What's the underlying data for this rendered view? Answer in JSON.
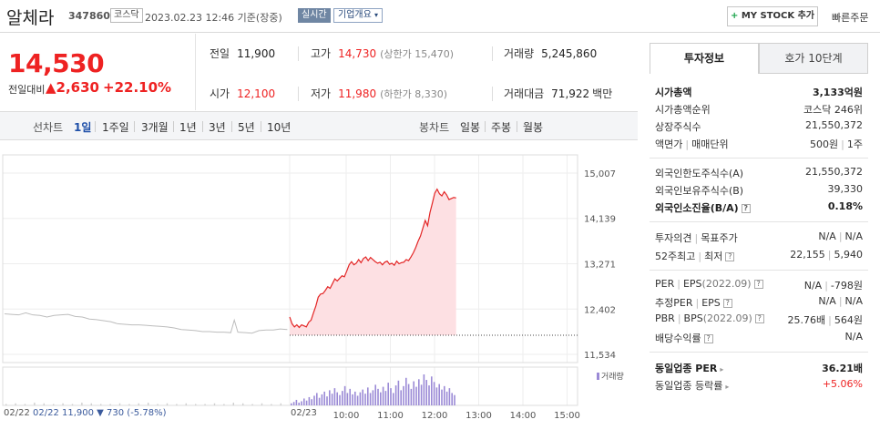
{
  "header": {
    "name": "알체라",
    "code": "347860",
    "market": "코스닥",
    "timestamp": "2023.02.23 12:46 기준(장중)",
    "realtime": "실시간",
    "overview": "기업개요",
    "mystock": "MY STOCK 추가",
    "quick_order": "빠른주문"
  },
  "price": {
    "current": "14,530",
    "label": "전일대비",
    "change": "2,630",
    "percent": "+22.10%"
  },
  "quote": {
    "prev_k": "전일",
    "prev_v": "11,900",
    "high_k": "고가",
    "high_v": "14,730",
    "upper_limit": "(상한가 15,470)",
    "volume_k": "거래량",
    "volume_v": "5,245,860",
    "open_k": "시가",
    "open_v": "12,100",
    "low_k": "저가",
    "low_v": "11,980",
    "lower_limit": "(하한가 8,330)",
    "amount_k": "거래대금",
    "amount_v": "71,922",
    "amount_unit": "백만"
  },
  "period": {
    "line_label": "선차트",
    "items": [
      "1일",
      "1주일",
      "3개월",
      "1년",
      "3년",
      "5년",
      "10년"
    ],
    "selected": "1일",
    "candle_label": "봉차트",
    "candles": [
      "일봉",
      "주봉",
      "월봉"
    ]
  },
  "chart_data": {
    "type": "line",
    "y_ticks": [
      "15,007",
      "14,139",
      "13,271",
      "12,402",
      "11,534"
    ],
    "ylim": [
      11534,
      15007
    ],
    "x_ticks": [
      "10:00",
      "11:00",
      "12:00",
      "13:00",
      "14:00",
      "15:00"
    ],
    "prev_day_label": "02/22",
    "today_label": "02/23",
    "prev_close_info": "02/22  11,900 ▼ 730 (-5.78%)",
    "volume_legend": "거래량",
    "prev_day_series": [
      [
        0,
        12310
      ],
      [
        4,
        12300
      ],
      [
        8,
        12290
      ],
      [
        12,
        12330
      ],
      [
        16,
        12290
      ],
      [
        20,
        12280
      ],
      [
        24,
        12250
      ],
      [
        28,
        12280
      ],
      [
        32,
        12290
      ],
      [
        36,
        12300
      ],
      [
        40,
        12260
      ],
      [
        44,
        12250
      ],
      [
        48,
        12210
      ],
      [
        52,
        12200
      ],
      [
        56,
        12180
      ],
      [
        60,
        12160
      ],
      [
        64,
        12120
      ],
      [
        68,
        12110
      ],
      [
        72,
        12100
      ],
      [
        76,
        12100
      ],
      [
        80,
        12090
      ],
      [
        84,
        12080
      ],
      [
        88,
        12070
      ],
      [
        92,
        12060
      ],
      [
        96,
        12040
      ],
      [
        100,
        12010
      ],
      [
        104,
        12000
      ],
      [
        108,
        11990
      ],
      [
        112,
        11970
      ],
      [
        116,
        11970
      ],
      [
        120,
        11960
      ],
      [
        124,
        11960
      ],
      [
        128,
        11950
      ],
      [
        130,
        12190
      ],
      [
        132,
        11960
      ],
      [
        136,
        11950
      ],
      [
        140,
        11940
      ],
      [
        144,
        11990
      ],
      [
        148,
        12000
      ],
      [
        152,
        12000
      ],
      [
        156,
        12020
      ],
      [
        160,
        12010
      ]
    ],
    "today_series": [
      [
        0,
        12250
      ],
      [
        2,
        12120
      ],
      [
        4,
        12060
      ],
      [
        6,
        12100
      ],
      [
        8,
        12050
      ],
      [
        10,
        12100
      ],
      [
        12,
        12080
      ],
      [
        14,
        12060
      ],
      [
        16,
        12150
      ],
      [
        18,
        12190
      ],
      [
        20,
        12330
      ],
      [
        22,
        12460
      ],
      [
        24,
        12630
      ],
      [
        26,
        12690
      ],
      [
        28,
        12700
      ],
      [
        30,
        12760
      ],
      [
        32,
        12830
      ],
      [
        34,
        12800
      ],
      [
        36,
        12890
      ],
      [
        38,
        12980
      ],
      [
        40,
        12940
      ],
      [
        42,
        12990
      ],
      [
        44,
        13040
      ],
      [
        46,
        13020
      ],
      [
        48,
        13130
      ],
      [
        50,
        13250
      ],
      [
        52,
        13310
      ],
      [
        54,
        13250
      ],
      [
        56,
        13280
      ],
      [
        58,
        13350
      ],
      [
        60,
        13290
      ],
      [
        62,
        13370
      ],
      [
        64,
        13400
      ],
      [
        66,
        13330
      ],
      [
        68,
        13390
      ],
      [
        70,
        13350
      ],
      [
        72,
        13310
      ],
      [
        74,
        13280
      ],
      [
        76,
        13300
      ],
      [
        78,
        13250
      ],
      [
        80,
        13300
      ],
      [
        82,
        13320
      ],
      [
        84,
        13260
      ],
      [
        86,
        13280
      ],
      [
        88,
        13240
      ],
      [
        90,
        13320
      ],
      [
        92,
        13270
      ],
      [
        94,
        13290
      ],
      [
        96,
        13300
      ],
      [
        98,
        13350
      ],
      [
        100,
        13330
      ],
      [
        102,
        13400
      ],
      [
        104,
        13480
      ],
      [
        106,
        13580
      ],
      [
        108,
        13700
      ],
      [
        110,
        13800
      ],
      [
        112,
        13950
      ],
      [
        114,
        14100
      ],
      [
        116,
        14000
      ],
      [
        118,
        14250
      ],
      [
        120,
        14430
      ],
      [
        122,
        14620
      ],
      [
        124,
        14700
      ],
      [
        126,
        14610
      ],
      [
        128,
        14570
      ],
      [
        130,
        14650
      ],
      [
        132,
        14590
      ],
      [
        134,
        14500
      ],
      [
        136,
        14520
      ],
      [
        138,
        14540
      ],
      [
        140,
        14530
      ]
    ],
    "volume_today": [
      3,
      5,
      8,
      4,
      6,
      10,
      7,
      12,
      9,
      14,
      18,
      11,
      16,
      20,
      13,
      22,
      17,
      25,
      19,
      15,
      21,
      28,
      18,
      24,
      16,
      20,
      14,
      19,
      23,
      17,
      26,
      18,
      22,
      30,
      24,
      19,
      27,
      21,
      33,
      25,
      18,
      29,
      36,
      22,
      28,
      40,
      31,
      24,
      35,
      27,
      38,
      30,
      45,
      37,
      29,
      42,
      34,
      26,
      31,
      23,
      28,
      20,
      25,
      18,
      15
    ],
    "volume_prev": [
      2,
      3,
      2,
      4,
      3,
      2,
      3,
      2,
      4,
      3,
      2,
      2,
      3,
      2,
      3,
      4,
      2,
      3,
      2,
      3,
      2,
      2,
      3,
      2,
      4,
      3,
      2,
      3,
      2,
      3
    ]
  },
  "panel": {
    "tab_on": "투자정보",
    "tab_off": "호가 10단계",
    "rows": {
      "cap_k": "시가총액",
      "cap_v": "3,133억원",
      "rank_k": "시가총액순위",
      "rank_v": "코스닥 246위",
      "shares_k": "상장주식수",
      "shares_v": "21,550,372",
      "par_k": "액면가",
      "trade_unit_k": "매매단위",
      "par_v": "500원",
      "trade_unit_v": "1주",
      "fl_k": "외국인한도주식수(A)",
      "fl_v": "21,550,372",
      "fh_k": "외국인보유주식수(B)",
      "fh_v": "39,330",
      "fr_k": "외국인소진율(B/A)",
      "fr_v": "0.18%",
      "op_k": "투자의견",
      "tp_k": "목표주가",
      "op_v": "N/A",
      "tp_v": "N/A",
      "wk_k": "52주최고",
      "wl_k": "최저",
      "wk_v": "22,155",
      "wl_v": "5,940",
      "per_k": "PER",
      "eps_k": "EPS",
      "eps_date": "(2022.09)",
      "per_v": "N/A",
      "eps_v": "-798원",
      "eper_k": "추정PER",
      "eeps_k": "EPS",
      "eper_v": "N/A",
      "eeps_v": "N/A",
      "pbr_k": "PBR",
      "bps_k": "BPS",
      "bps_date": "(2022.09)",
      "pbr_v": "25.76배",
      "bps_v": "564원",
      "div_k": "배당수익률",
      "div_v": "N/A",
      "sper_k": "동일업종 PER",
      "sper_v": "36.21배",
      "srate_k": "동일업종 등락률",
      "srate_v": "+5.06%"
    }
  }
}
